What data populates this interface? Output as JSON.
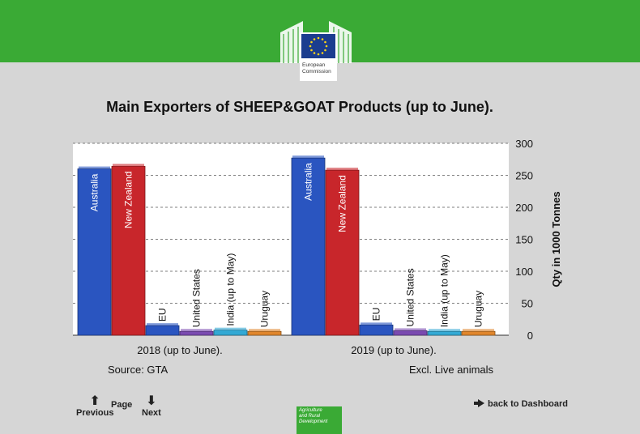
{
  "header": {
    "logo_line1": "European",
    "logo_line2": "Commission",
    "brand_color": "#3aaa35"
  },
  "chart_title": "Main Exporters of SHEEP&GOAT Products (up to June).",
  "chart_data": {
    "type": "bar",
    "title": "Main Exporters of SHEEP&GOAT Products (up to June).",
    "categories": [
      "2018 (up to June).",
      "2019 (up to June)."
    ],
    "series": [
      {
        "name": "Australia",
        "color": "#2a55c0",
        "values": [
          260,
          277
        ]
      },
      {
        "name": "New Zealand",
        "color": "#c8262b",
        "values": [
          264,
          258
        ]
      },
      {
        "name": "EU",
        "color": "#2a55c0",
        "values": [
          15,
          16
        ]
      },
      {
        "name": "United States",
        "color": "#7a4ab0",
        "values": [
          6,
          7
        ]
      },
      {
        "name": "India (up to May)",
        "color": "#33a9d4",
        "values": [
          8,
          6
        ]
      },
      {
        "name": "Uruguay",
        "color": "#e0862c",
        "values": [
          6,
          6
        ]
      }
    ],
    "ylabel": "Qty in 1000 Tonnes",
    "ylim": [
      0,
      300
    ],
    "yticks": [
      0,
      50,
      100,
      150,
      200,
      250,
      300
    ],
    "grid": true
  },
  "footer": {
    "source": "Source: GTA",
    "note": "Excl. Live animals",
    "page_label": "Page",
    "previous": "Previous",
    "next": "Next",
    "back": "back to Dashboard",
    "dg_line1": "Agriculture",
    "dg_line2": "and Rural",
    "dg_line3": "Development"
  }
}
